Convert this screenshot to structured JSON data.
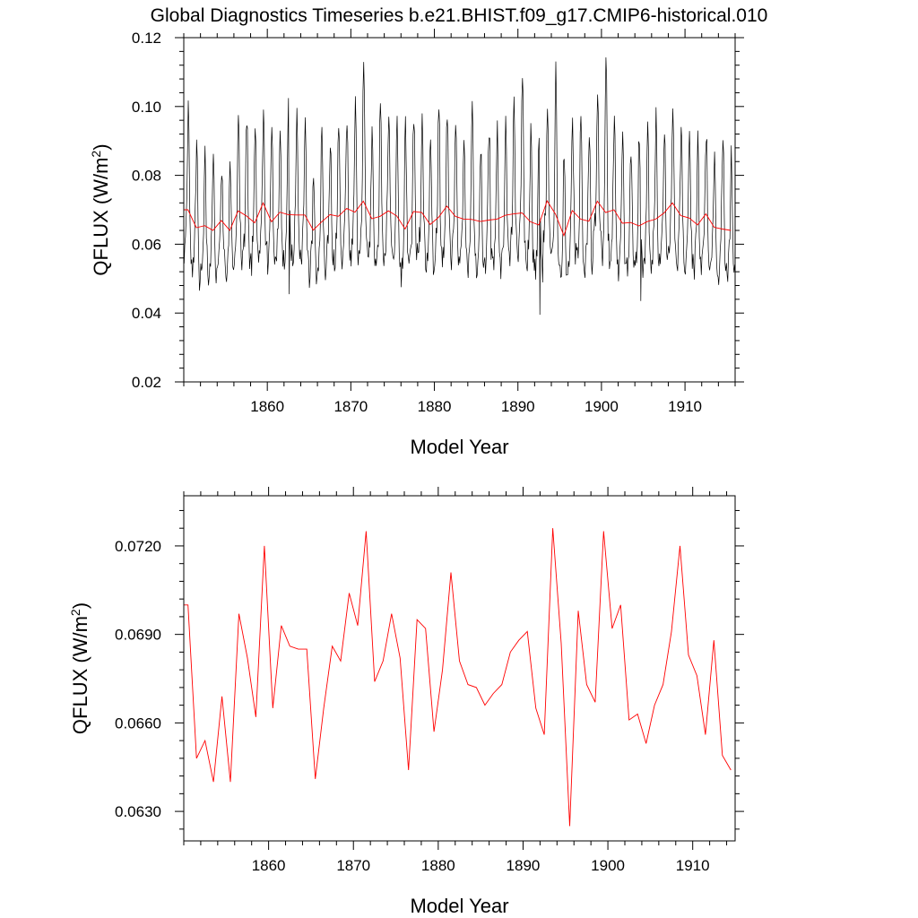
{
  "title": "Global Diagnostics Timeseries b.e21.BHIST.f09_g17.CMIP6-historical.010",
  "colors": {
    "monthly": "#000000",
    "annual": "#ff0000",
    "frame": "#000000"
  },
  "chart_data": [
    {
      "type": "line",
      "xlabel": "Model Year",
      "ylabel_main": "QFLUX (W/m",
      "ylabel_sup": "2",
      "ylabel_close": ")",
      "xlim": [
        1850,
        1916
      ],
      "ylim": [
        0.02,
        0.12
      ],
      "xticks": [
        1860,
        1870,
        1880,
        1890,
        1900,
        1910
      ],
      "yticks": [
        0.02,
        0.04,
        0.06,
        0.08,
        0.1,
        0.12
      ],
      "ytick_labels": [
        "0.02",
        "0.04",
        "0.06",
        "0.08",
        "0.10",
        "0.12"
      ],
      "monthly_series": {
        "color": "#000000",
        "x_start": 1850.04,
        "x_step": 0.0833333,
        "monthly_climatology": [
          0.0545,
          0.0555,
          0.059,
          0.0615,
          0.07,
          0.084,
          0.0905,
          0.084,
          0.068,
          0.0595,
          0.056,
          0.0545
        ],
        "annual_peaks": [
          0.098,
          0.091,
          0.088,
          0.093,
          0.085,
          0.086,
          0.097,
          0.098,
          0.098,
          0.092,
          0.097,
          0.09,
          0.102,
          0.098,
          0.098,
          0.085,
          0.096,
          0.09,
          0.098,
          0.096,
          0.102,
          0.107,
          0.093,
          0.1,
          0.097,
          0.094,
          0.1,
          0.097,
          0.098,
          0.095,
          0.1,
          0.098,
          0.097,
          0.096,
          0.1,
          0.09,
          0.096,
          0.094,
          0.097,
          0.099,
          0.112,
          0.093,
          0.096,
          0.095,
          0.11,
          0.094,
          0.093,
          0.098,
          0.097,
          0.101,
          0.114,
          0.093,
          0.095,
          0.091,
          0.097,
          0.094,
          0.097,
          0.096,
          0.099,
          0.093,
          0.096,
          0.092,
          0.094,
          0.09,
          0.099,
          0.09
        ],
        "noise": 0.0045,
        "noted_minima": [
          [
            1851.9,
            0.0465
          ],
          [
            1862.6,
            0.0455
          ],
          [
            1892.6,
            0.0395
          ],
          [
            1904.7,
            0.0435
          ]
        ]
      },
      "annual_series": {
        "color": "#ff0000",
        "ref": "annual_means"
      }
    },
    {
      "type": "line",
      "xlabel": "Model Year",
      "ylabel_main": "QFLUX (W/m",
      "ylabel_sup": "2",
      "ylabel_close": ")",
      "xlim": [
        1850,
        1915
      ],
      "ylim": [
        0.062,
        0.0737
      ],
      "xticks": [
        1860,
        1870,
        1880,
        1890,
        1900,
        1910
      ],
      "yticks": [
        0.063,
        0.066,
        0.069,
        0.072
      ],
      "ytick_labels": [
        "0.0630",
        "0.0660",
        "0.0690",
        "0.0720"
      ],
      "series": [
        {
          "color": "#ff0000"
        }
      ]
    }
  ],
  "annual_means": {
    "x": [
      1850.5,
      1851.5,
      1852.5,
      1853.5,
      1854.5,
      1855.5,
      1856.5,
      1857.5,
      1858.5,
      1859.5,
      1860.5,
      1861.5,
      1862.5,
      1863.5,
      1864.5,
      1865.5,
      1866.5,
      1867.5,
      1868.5,
      1869.5,
      1870.5,
      1871.5,
      1872.5,
      1873.5,
      1874.5,
      1875.5,
      1876.5,
      1877.5,
      1878.5,
      1879.5,
      1880.5,
      1881.5,
      1882.5,
      1883.5,
      1884.5,
      1885.5,
      1886.5,
      1887.5,
      1888.5,
      1889.5,
      1890.5,
      1891.5,
      1892.5,
      1893.5,
      1894.5,
      1895.5,
      1896.5,
      1897.5,
      1898.5,
      1899.5,
      1900.5,
      1901.5,
      1902.5,
      1903.5,
      1904.5,
      1905.5,
      1906.5,
      1907.5,
      1908.5,
      1909.5,
      1910.5,
      1911.5,
      1912.5,
      1913.5,
      1914.5,
      1915.5
    ],
    "y": [
      0.07,
      0.0648,
      0.0654,
      0.064,
      0.0669,
      0.064,
      0.0697,
      0.0682,
      0.0662,
      0.072,
      0.0665,
      0.0693,
      0.0686,
      0.0685,
      0.0685,
      0.0641,
      0.0665,
      0.0686,
      0.0681,
      0.0704,
      0.0693,
      0.0725,
      0.0674,
      0.0681,
      0.0697,
      0.0682,
      0.0644,
      0.0695,
      0.0692,
      0.0657,
      0.0678,
      0.0711,
      0.0681,
      0.0673,
      0.0672,
      0.0666,
      0.067,
      0.0673,
      0.0684,
      0.0688,
      0.0691,
      0.0665,
      0.0656,
      0.0726,
      0.0687,
      0.0625,
      0.0698,
      0.0673,
      0.0667,
      0.0725,
      0.0692,
      0.07,
      0.0661,
      0.0663,
      0.0653,
      0.0666,
      0.0673,
      0.0691,
      0.072,
      0.0683,
      0.0676,
      0.0656,
      0.0688,
      0.0649,
      0.0644,
      0.064
    ]
  }
}
